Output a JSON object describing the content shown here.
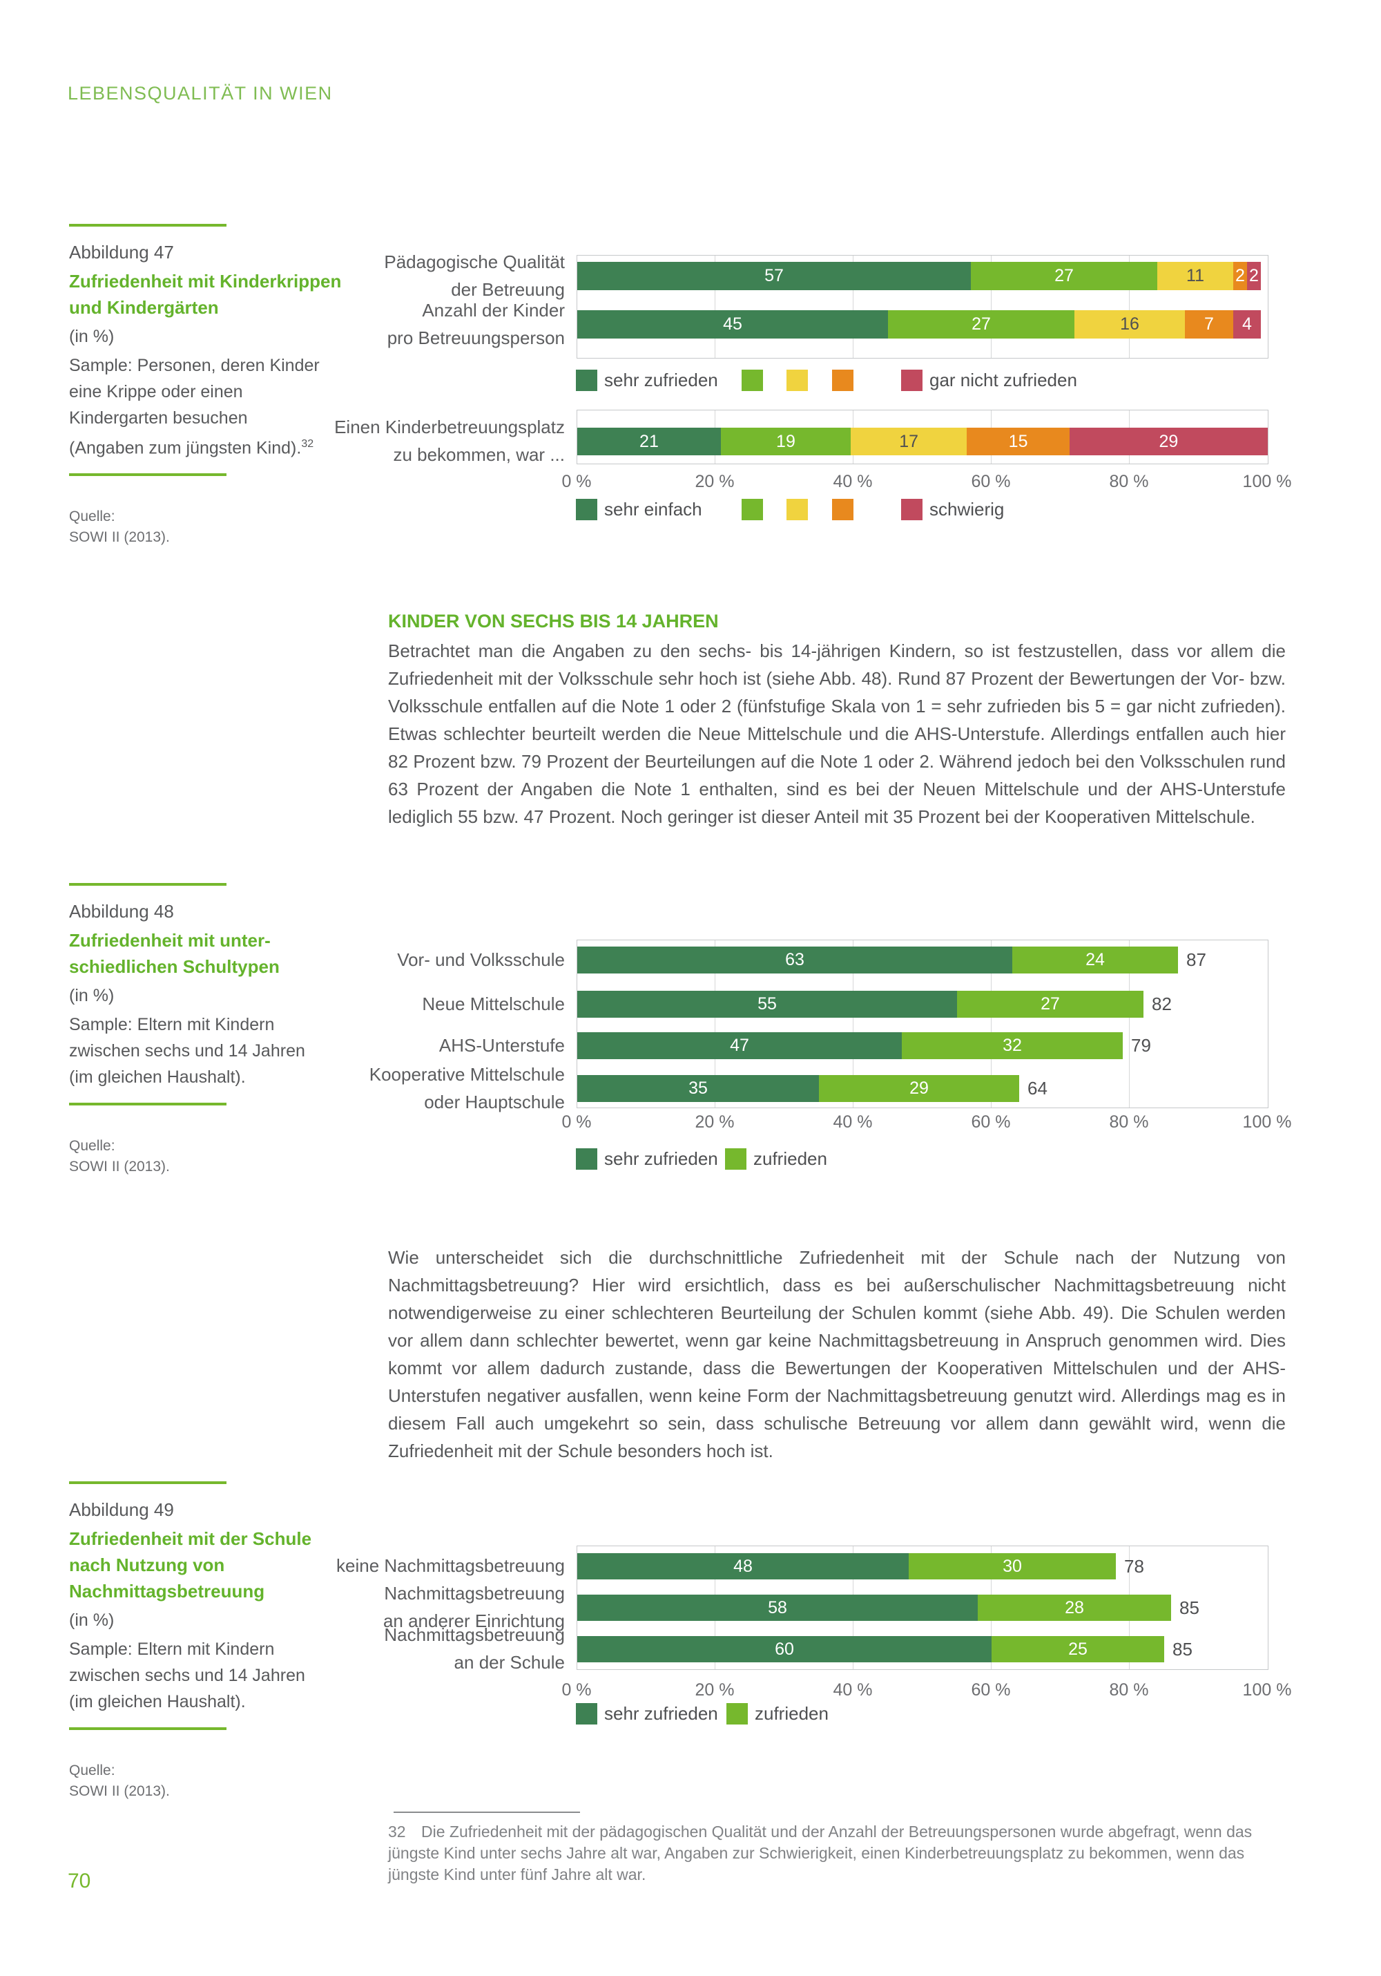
{
  "page": {
    "header": "LEBENSQUALITÄT IN WIEN",
    "page_number": "70",
    "colors": {
      "accent_green": "#64b32c",
      "rule_green": "#76b82d",
      "header_green": "#7fbc52",
      "body_text": "#57585a",
      "muted_text": "#6d6e71",
      "footnote_text": "#808285",
      "grid_line": "#d6d7d8",
      "plot_border": "#c6c8ca"
    }
  },
  "figures": [
    {
      "label": "Abbildung 47",
      "title": "Zufriedenheit mit Kinderkrippen\nund Kindergärten",
      "unit": "(in %)",
      "sample": "Sample: Personen, deren Kinder\neine Krippe oder einen\nKindergarten besuchen\n(Angaben zum jüngsten Kind).",
      "footnote_ref": "32",
      "source_label": "Quelle:",
      "source": "SOWI II (2013)."
    },
    {
      "label": "Abbildung 48",
      "title": "Zufriedenheit mit unter-\nschiedlichen Schultypen",
      "unit": "(in %)",
      "sample": "Sample: Eltern mit Kindern\nzwischen sechs und 14 Jahren\n(im gleichen Haushalt).",
      "source_label": "Quelle:",
      "source": "SOWI II (2013)."
    },
    {
      "label": "Abbildung 49",
      "title": "Zufriedenheit mit der Schule\nnach Nutzung von\nNachmittagsbetreuung",
      "unit": "(in %)",
      "sample": "Sample: Eltern mit Kindern\nzwischen sechs und 14 Jahren\n(im gleichen Haushalt).",
      "source_label": "Quelle:",
      "source": "SOWI II (2013)."
    }
  ],
  "section": {
    "heading": "KINDER VON SECHS BIS 14 JAHREN",
    "para1": "Betrachtet man die Angaben zu den sechs- bis 14-jährigen Kindern, so ist festzustellen, dass vor allem die Zufriedenheit mit der Volksschule sehr hoch ist (siehe Abb. 48). Rund 87 Prozent der Bewertungen der Vor- bzw. Volksschule entfallen auf die Note 1 oder 2 (fünfstufige Skala von 1 = sehr zufrieden bis 5 = gar nicht zufrieden). Etwas schlechter beurteilt werden die Neue Mittelschule und die AHS-Unterstufe. Allerdings entfallen auch hier 82 Prozent bzw. 79 Prozent der Beurteilungen auf die Note 1 oder 2. Während jedoch bei den Volksschulen rund 63 Prozent der Angaben die Note 1 enthalten, sind es bei der Neuen Mittelschule und der AHS-Unterstufe lediglich 55 bzw. 47 Prozent. Noch geringer ist dieser Anteil mit 35 Prozent bei der Kooperativen Mittelschule.",
    "para2": "Wie unterscheidet sich die durchschnittliche Zufriedenheit mit der Schule nach der Nutzung von Nachmittagsbetreuung? Hier wird ersichtlich, dass es bei außerschulischer Nachmittagsbetreuung nicht notwendigerweise zu einer schlechteren Beurteilung der Schulen kommt (siehe Abb. 49). Die Schulen werden vor allem dann schlechter bewertet, wenn gar keine Nachmittagsbetreuung in Anspruch genommen wird. Dies kommt vor allem dadurch zustande, dass die Bewertungen der Kooperativen Mittelschulen und der AHS-Unterstufen negativer ausfallen, wenn keine Form der Nachmittagsbetreuung genutzt wird. Allerdings mag es in diesem Fall auch umgekehrt so sein, dass schulische Betreuung vor allem dann gewählt wird, wenn die Zufriedenheit mit der Schule besonders hoch ist."
  },
  "footnote": {
    "number": "32",
    "text": "Die Zufriedenheit mit der pädagogischen Qualität und der Anzahl der Betreuungspersonen wurde abgefragt, wenn das jüngste Kind unter sechs Jahre alt war, Angaben zur Schwierigkeit, einen Kinderbetreuungsplatz zu bekommen, wenn das jüngste Kind unter fünf Jahre alt war."
  },
  "chart_data": [
    {
      "id": "abbildung-47",
      "type": "bar",
      "stacked": true,
      "orientation": "horizontal",
      "xlim": [
        0,
        100
      ],
      "xticks": [
        "0 %",
        "20 %",
        "40 %",
        "60 %",
        "80 %",
        "100 %"
      ],
      "palette": [
        "#3e8153",
        "#76b82d",
        "#f0d33f",
        "#e8891e",
        "#c14a5e"
      ],
      "groups": [
        {
          "categories": [
            "Pädagogische Qualität\nder Betreuung",
            "Anzahl der Kinder\npro Betreuungsperson"
          ],
          "values": [
            [
              57,
              27,
              11,
              2,
              2
            ],
            [
              45,
              27,
              16,
              7,
              4
            ]
          ],
          "legend": [
            "sehr zufrieden",
            "",
            "",
            "",
            "gar nicht zufrieden"
          ],
          "show_xticks": false
        },
        {
          "categories": [
            "Einen Kinderbetreuungsplatz\nzu bekommen, war ..."
          ],
          "values": [
            [
              21,
              19,
              17,
              15,
              29
            ]
          ],
          "legend": [
            "sehr einfach",
            "",
            "",
            "",
            "schwierig"
          ],
          "show_xticks": true
        }
      ]
    },
    {
      "id": "abbildung-48",
      "type": "bar",
      "stacked": true,
      "orientation": "horizontal",
      "xlim": [
        0,
        100
      ],
      "xticks": [
        "0 %",
        "20 %",
        "40 %",
        "60 %",
        "80 %",
        "100 %"
      ],
      "palette": [
        "#3e8153",
        "#76b82d"
      ],
      "categories": [
        "Vor- und Volksschule",
        "Neue Mittelschule",
        "AHS-Unterstufe",
        "Kooperative Mittelschule\noder Hauptschule"
      ],
      "series": [
        {
          "name": "sehr zufrieden",
          "values": [
            63,
            55,
            47,
            35
          ]
        },
        {
          "name": "zufrieden",
          "values": [
            24,
            27,
            32,
            29
          ]
        }
      ],
      "totals": [
        87,
        82,
        79,
        64
      ],
      "legend": [
        "sehr zufrieden",
        "zufrieden"
      ]
    },
    {
      "id": "abbildung-49",
      "type": "bar",
      "stacked": true,
      "orientation": "horizontal",
      "xlim": [
        0,
        100
      ],
      "xticks": [
        "0 %",
        "20 %",
        "40 %",
        "60 %",
        "80 %",
        "100 %"
      ],
      "palette": [
        "#3e8153",
        "#76b82d"
      ],
      "categories": [
        "keine Nachmittagsbetreuung",
        "Nachmittagsbetreuung\nan anderer Einrichtung",
        "Nachmittagsbetreuung\nan der Schule"
      ],
      "series": [
        {
          "name": "sehr zufrieden",
          "values": [
            48,
            58,
            60
          ]
        },
        {
          "name": "zufrieden",
          "values": [
            30,
            28,
            25
          ]
        }
      ],
      "totals": [
        78,
        85,
        85
      ],
      "legend": [
        "sehr zufrieden",
        "zufrieden"
      ]
    }
  ]
}
